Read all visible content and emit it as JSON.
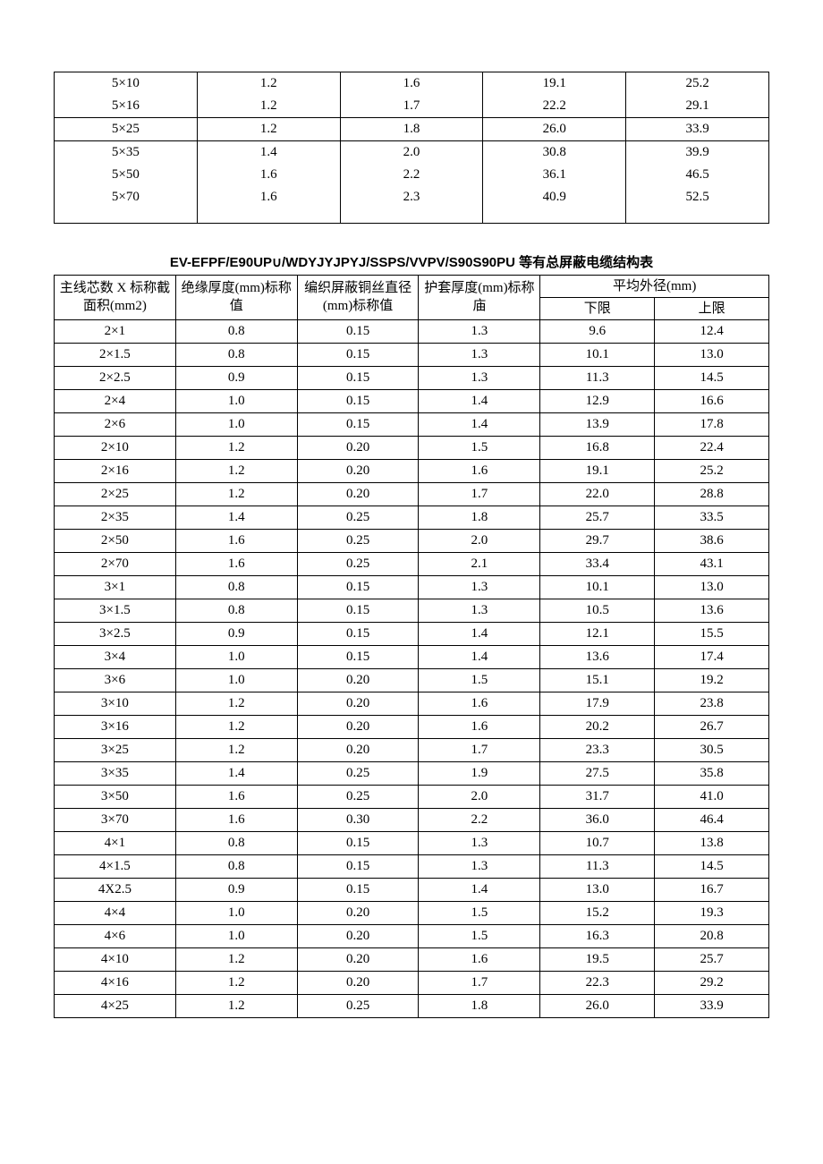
{
  "upper_table": {
    "type": "table",
    "group1_rows": [
      [
        "5×10",
        "1.2",
        "1.6",
        "19.1",
        "25.2"
      ],
      [
        "5×16",
        "1.2",
        "1.7",
        "22.2",
        "29.1"
      ]
    ],
    "group2_rows": [
      [
        "5×25",
        "1.2",
        "1.8",
        "26.0",
        "33.9"
      ]
    ],
    "group3_rows": [
      [
        "5×35",
        "1.4",
        "2.0",
        "30.8",
        "39.9"
      ],
      [
        "5×50",
        "1.6",
        "2.2",
        "36.1",
        "46.5"
      ],
      [
        "5×70",
        "1.6",
        "2.3",
        "40.9",
        "52.5"
      ]
    ]
  },
  "section_title": "EV-EFPF/E90UP∪/WDYJYJPYJ/SSPS/VVPV/S90S90PU 等有总屏蔽电缆结构表",
  "lower_table": {
    "type": "table",
    "columns": {
      "col1": "主线芯数 X 标称截面积(mm2)",
      "col2": "绝缘厚度(mm)标称值",
      "col3": "编织屏蔽铜丝直径(mm)标称值",
      "col4": "护套厚度(mm)标称庙",
      "col5_group": "平均外径(mm)",
      "col5a": "下限",
      "col5b": "上限"
    },
    "rows": [
      [
        "2×1",
        "0.8",
        "0.15",
        "1.3",
        "9.6",
        "12.4"
      ],
      [
        "2×1.5",
        "0.8",
        "0.15",
        "1.3",
        "10.1",
        "13.0"
      ],
      [
        "2×2.5",
        "0.9",
        "0.15",
        "1.3",
        "11.3",
        "14.5"
      ],
      [
        "2×4",
        "1.0",
        "0.15",
        "1.4",
        "12.9",
        "16.6"
      ],
      [
        "2×6",
        "1.0",
        "0.15",
        "1.4",
        "13.9",
        "17.8"
      ],
      [
        "2×10",
        "1.2",
        "0.20",
        "1.5",
        "16.8",
        "22.4"
      ],
      [
        "2×16",
        "1.2",
        "0.20",
        "1.6",
        "19.1",
        "25.2"
      ],
      [
        "2×25",
        "1.2",
        "0.20",
        "1.7",
        "22.0",
        "28.8"
      ],
      [
        "2×35",
        "1.4",
        "0.25",
        "1.8",
        "25.7",
        "33.5"
      ],
      [
        "2×50",
        "1.6",
        "0.25",
        "2.0",
        "29.7",
        "38.6"
      ],
      [
        "2×70",
        "1.6",
        "0.25",
        "2.1",
        "33.4",
        "43.1"
      ],
      [
        "3×1",
        "0.8",
        "0.15",
        "1.3",
        "10.1",
        "13.0"
      ],
      [
        "3×1.5",
        "0.8",
        "0.15",
        "1.3",
        "10.5",
        "13.6"
      ],
      [
        "3×2.5",
        "0.9",
        "0.15",
        "1.4",
        "12.1",
        "15.5"
      ],
      [
        "3×4",
        "1.0",
        "0.15",
        "1.4",
        "13.6",
        "17.4"
      ],
      [
        "3×6",
        "1.0",
        "0.20",
        "1.5",
        "15.1",
        "19.2"
      ],
      [
        "3×10",
        "1.2",
        "0.20",
        "1.6",
        "17.9",
        "23.8"
      ],
      [
        "3×16",
        "1.2",
        "0.20",
        "1.6",
        "20.2",
        "26.7"
      ],
      [
        "3×25",
        "1.2",
        "0.20",
        "1.7",
        "23.3",
        "30.5"
      ],
      [
        "3×35",
        "1.4",
        "0.25",
        "1.9",
        "27.5",
        "35.8"
      ],
      [
        "3×50",
        "1.6",
        "0.25",
        "2.0",
        "31.7",
        "41.0"
      ],
      [
        "3×70",
        "1.6",
        "0.30",
        "2.2",
        "36.0",
        "46.4"
      ],
      [
        "4×1",
        "0.8",
        "0.15",
        "1.3",
        "10.7",
        "13.8"
      ],
      [
        "4×1.5",
        "0.8",
        "0.15",
        "1.3",
        "11.3",
        "14.5"
      ],
      [
        "4X2.5",
        "0.9",
        "0.15",
        "1.4",
        "13.0",
        "16.7"
      ],
      [
        "4×4",
        "1.0",
        "0.20",
        "1.5",
        "15.2",
        "19.3"
      ],
      [
        "4×6",
        "1.0",
        "0.20",
        "1.5",
        "16.3",
        "20.8"
      ],
      [
        "4×10",
        "1.2",
        "0.20",
        "1.6",
        "19.5",
        "25.7"
      ],
      [
        "4×16",
        "1.2",
        "0.20",
        "1.7",
        "22.3",
        "29.2"
      ],
      [
        "4×25",
        "1.2",
        "0.25",
        "1.8",
        "26.0",
        "33.9"
      ]
    ]
  },
  "style": {
    "background_color": "#ffffff",
    "text_color": "#000000",
    "border_color": "#000000",
    "title_font_family": "SimHei",
    "body_font_family": "SimSun",
    "body_fontsize": 15,
    "title_fontsize": 15
  }
}
